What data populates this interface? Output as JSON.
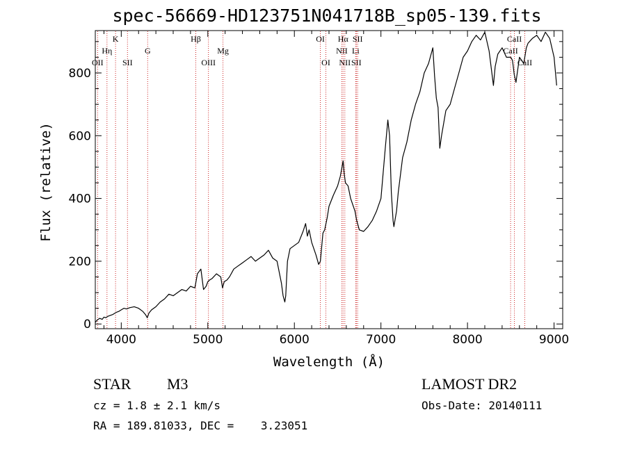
{
  "chart_data": {
    "type": "line",
    "title": "spec-56669-HD123751N041718B_sp05-139.fits",
    "xlabel": "Wavelength (Å)",
    "ylabel": "Flux (relative)",
    "xlim": [
      3700,
      9100
    ],
    "ylim": [
      -15,
      935
    ],
    "grid": false,
    "xticks": [
      4000,
      5000,
      6000,
      7000,
      8000,
      9000
    ],
    "yticks": [
      0,
      200,
      400,
      600,
      800
    ],
    "line_color": "#000000",
    "marker_color": "#cc2222",
    "series": [
      {
        "x": [
          3700,
          3720,
          3750,
          3780,
          3800,
          3820,
          3850,
          3880,
          3900,
          3930,
          3950,
          3970,
          4000,
          4030,
          4060,
          4100,
          4150,
          4200,
          4250,
          4280,
          4300,
          4320,
          4350,
          4400,
          4450,
          4500,
          4550,
          4600,
          4650,
          4700,
          4750,
          4800,
          4850,
          4860,
          4880,
          4920,
          4950,
          4980,
          5000,
          5020,
          5050,
          5100,
          5150,
          5170,
          5190,
          5220,
          5250,
          5300,
          5350,
          5400,
          5450,
          5500,
          5550,
          5600,
          5650,
          5700,
          5750,
          5800,
          5850,
          5870,
          5890,
          5900,
          5920,
          5950,
          6000,
          6050,
          6100,
          6130,
          6150,
          6170,
          6200,
          6250,
          6280,
          6300,
          6330,
          6350,
          6380,
          6400,
          6450,
          6500,
          6530,
          6550,
          6563,
          6575,
          6590,
          6620,
          6650,
          6700,
          6720,
          6750,
          6800,
          6850,
          6900,
          6950,
          7000,
          7050,
          7080,
          7100,
          7120,
          7140,
          7150,
          7180,
          7200,
          7250,
          7300,
          7350,
          7400,
          7450,
          7500,
          7550,
          7600,
          7620,
          7640,
          7660,
          7680,
          7700,
          7750,
          7800,
          7850,
          7900,
          7950,
          8000,
          8050,
          8100,
          8150,
          8200,
          8250,
          8300,
          8320,
          8350,
          8400,
          8450,
          8500,
          8520,
          8540,
          8560,
          8600,
          8650,
          8680,
          8700,
          8750,
          8800,
          8850,
          8900,
          8950,
          9000,
          9030
        ],
        "y": [
          5,
          12,
          18,
          15,
          22,
          20,
          25,
          28,
          30,
          35,
          38,
          40,
          45,
          50,
          48,
          52,
          55,
          50,
          40,
          30,
          20,
          35,
          45,
          55,
          70,
          80,
          95,
          90,
          100,
          110,
          105,
          120,
          115,
          130,
          160,
          175,
          110,
          120,
          135,
          140,
          145,
          160,
          150,
          115,
          135,
          140,
          150,
          175,
          185,
          195,
          205,
          215,
          200,
          210,
          220,
          235,
          210,
          200,
          130,
          90,
          70,
          90,
          200,
          240,
          250,
          260,
          295,
          320,
          280,
          300,
          260,
          220,
          190,
          200,
          290,
          300,
          340,
          375,
          410,
          440,
          470,
          500,
          520,
          480,
          450,
          440,
          400,
          360,
          330,
          300,
          295,
          310,
          330,
          360,
          400,
          560,
          650,
          600,
          420,
          330,
          310,
          360,
          420,
          530,
          580,
          650,
          700,
          740,
          800,
          830,
          880,
          790,
          720,
          690,
          560,
          600,
          680,
          700,
          750,
          800,
          850,
          870,
          900,
          920,
          905,
          930,
          870,
          760,
          820,
          860,
          880,
          850,
          850,
          840,
          795,
          770,
          850,
          830,
          880,
          895,
          910,
          920,
          900,
          930,
          910,
          850,
          760
        ]
      }
    ],
    "line_markers": [
      {
        "label": "OII",
        "x": 3727,
        "row": 3
      },
      {
        "label": "Hη",
        "x": 3835,
        "row": 2
      },
      {
        "label": "K",
        "x": 3934,
        "row": 1
      },
      {
        "label": "SII",
        "x": 4072,
        "row": 3
      },
      {
        "label": "G",
        "x": 4305,
        "row": 2
      },
      {
        "label": "Hβ",
        "x": 4861,
        "row": 1
      },
      {
        "label": "OIII",
        "x": 5007,
        "row": 3
      },
      {
        "label": "Mg",
        "x": 5175,
        "row": 2
      },
      {
        "label": "OI",
        "x": 6300,
        "row": 1
      },
      {
        "label": "OI",
        "x": 6364,
        "row": 3
      },
      {
        "label": "NII",
        "x": 6548,
        "row": 2
      },
      {
        "label": "NII",
        "x": 6583,
        "row": 3
      },
      {
        "label": "Hα",
        "x": 6563,
        "row": 1
      },
      {
        "label": "Li",
        "x": 6708,
        "row": 2
      },
      {
        "label": "SII",
        "x": 6716,
        "row": 3
      },
      {
        "label": "SII",
        "x": 6731,
        "row": 1
      },
      {
        "label": "CaII",
        "x": 8498,
        "row": 2
      },
      {
        "label": "CaII",
        "x": 8542,
        "row": 1
      },
      {
        "label": "CaII",
        "x": 8662,
        "row": 3
      }
    ]
  },
  "info": {
    "class_label": "STAR",
    "subclass": "M3",
    "survey": "LAMOST DR2",
    "cz": "cz = 1.8 ± 2.1 km/s",
    "obs_date": "Obs-Date: 20140111",
    "radec": "RA = 189.81033, DEC =    3.23051"
  }
}
